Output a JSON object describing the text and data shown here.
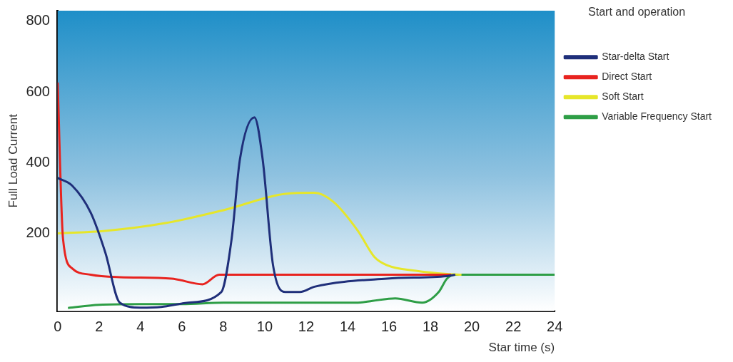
{
  "chart_data": {
    "type": "line",
    "xlabel": "Star time (s)",
    "ylabel": "Full Load Current",
    "legend_title": "Start and operation",
    "legend": "top right",
    "marker": "none",
    "line_style": "solid",
    "xlim": [
      0,
      24
    ],
    "xticks": [
      0,
      2,
      4,
      6,
      8,
      10,
      12,
      14,
      16,
      18,
      20,
      22,
      24
    ],
    "ylim": [
      -20,
      830
    ],
    "yticks": [
      200,
      400,
      600,
      800
    ],
    "series": [
      {
        "name": "Star-delta Start",
        "color": "#1f2f7a",
        "x": [
          0,
          0.7,
          1.6,
          2.3,
          3,
          4,
          5,
          6.3,
          7.9,
          8.4,
          8.8,
          9.5,
          9.9,
          10.4,
          11,
          11.7,
          12.4,
          15.9,
          18.8,
          19.2
        ],
        "values": [
          357,
          335,
          258,
          146,
          4,
          -10,
          -8,
          4,
          34,
          184,
          409,
          528,
          409,
          110,
          34,
          34,
          49,
          72,
          79,
          83
        ]
      },
      {
        "name": "Direct Start",
        "color": "#e8231f",
        "x": [
          0,
          0.26,
          0.7,
          1.6,
          3,
          5.5,
          7,
          7.8,
          12,
          16,
          19
        ],
        "values": [
          627,
          184,
          101,
          83,
          76,
          72,
          56,
          83,
          83,
          83,
          83
        ]
      },
      {
        "name": "Soft Start",
        "color": "#e6e62a",
        "x": [
          0,
          2.3,
          5.2,
          8.1,
          11,
          12.4,
          13.3,
          14.5,
          15.3,
          15.9,
          17.3,
          18.8,
          19.5
        ],
        "values": [
          200,
          207,
          229,
          267,
          312,
          315,
          290,
          207,
          133,
          110,
          94,
          85,
          83
        ]
      },
      {
        "name": "Variable Frequency Start",
        "color": "#2e9e46",
        "x": [
          0.5,
          2,
          4,
          6,
          8,
          10,
          12,
          14.5,
          15.2,
          16.3,
          17.6,
          18.4,
          18.8,
          19.2,
          24
        ],
        "values": [
          -11,
          -2,
          0,
          0,
          4,
          4,
          4,
          4,
          9,
          16,
          4,
          34,
          72,
          83,
          83
        ]
      }
    ]
  }
}
